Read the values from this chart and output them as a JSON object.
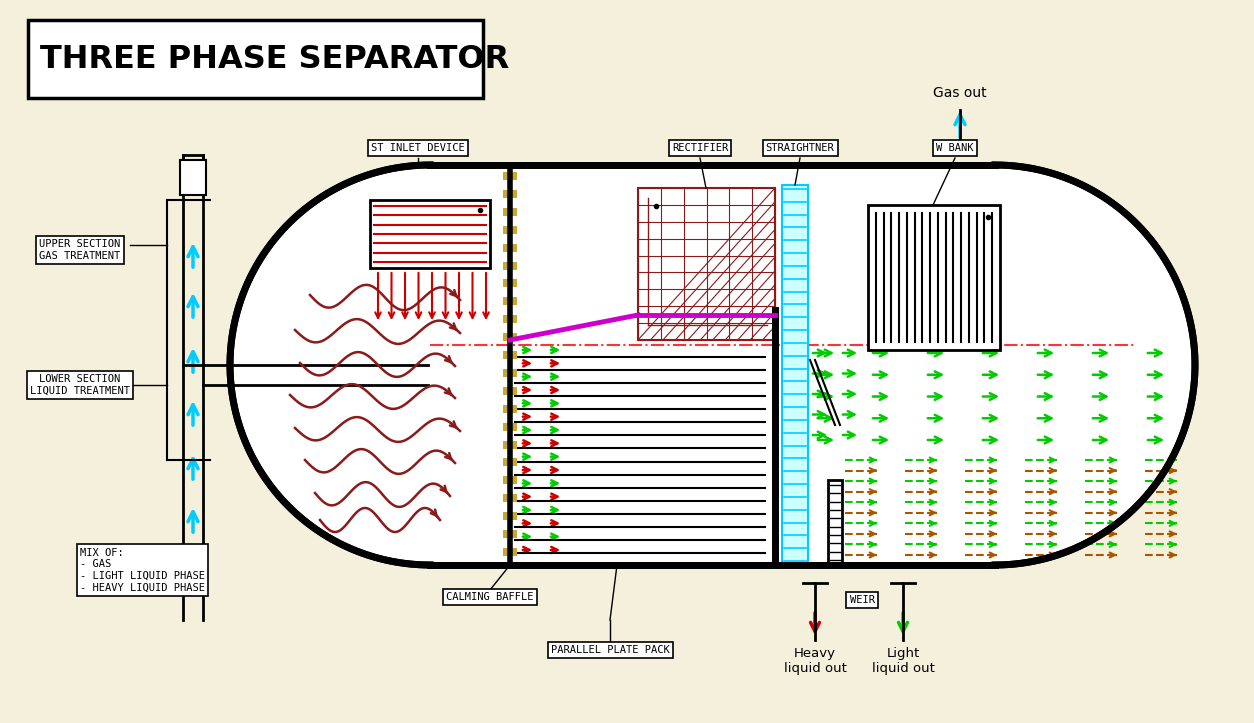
{
  "bg_color": "#F5F0DC",
  "title": "THREE PHASE SEPARATOR",
  "cyan": "#00CCFF",
  "red": "#CC0000",
  "dark_red": "#8B1A1A",
  "green": "#00CC00",
  "magenta": "#CC00CC",
  "gold": "#C8A832",
  "black": "#000000",
  "white": "#FFFFFF",
  "labels": {
    "inlet_device": "ST INLET DEVICE",
    "rectifier": "RECTIFIER",
    "straightner": "STRAIGHTNER",
    "w_bank": "W BANK",
    "gas_out": "Gas out",
    "upper_section": "UPPER SECTION\nGAS TREATMENT",
    "lower_section": "LOWER SECTION\nLIQUID TREATMENT",
    "mix_of": "MIX OF:\n- GAS\n- LIGHT LIQUID PHASE\n- HEAVY LIQUID PHASE",
    "calming_baffle": "CALMING BAFFLE",
    "parallel_plate": "PARALLEL PLATE PACK",
    "heavy_liquid": "Heavy\nliquid out",
    "light_liquid": "Light\nliquid out",
    "weir": "WEIR"
  }
}
